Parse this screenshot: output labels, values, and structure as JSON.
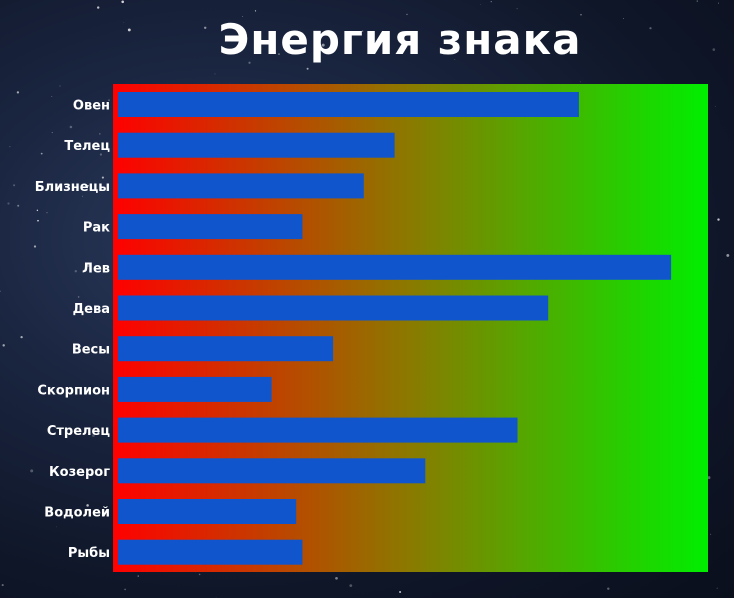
{
  "title": "Энергия знака",
  "colors": {
    "bar": "#1155cc",
    "gradient_start": "#ff0000",
    "gradient_mid": "#8a7a00",
    "gradient_end": "#00ee00",
    "label": "#ffffff"
  },
  "chart_data": {
    "type": "bar",
    "orientation": "horizontal",
    "title": "Энергия знака",
    "xlabel": "",
    "ylabel": "",
    "categories": [
      "Овен",
      "Телец",
      "Близнецы",
      "Рак",
      "Лев",
      "Дева",
      "Весы",
      "Скорпион",
      "Стрелец",
      "Козерог",
      "Водолей",
      "Рыбы"
    ],
    "values": [
      75,
      45,
      40,
      30,
      90,
      70,
      35,
      25,
      65,
      50,
      29,
      30
    ],
    "xlim": [
      0,
      96
    ],
    "grid": false,
    "legend": "none"
  }
}
